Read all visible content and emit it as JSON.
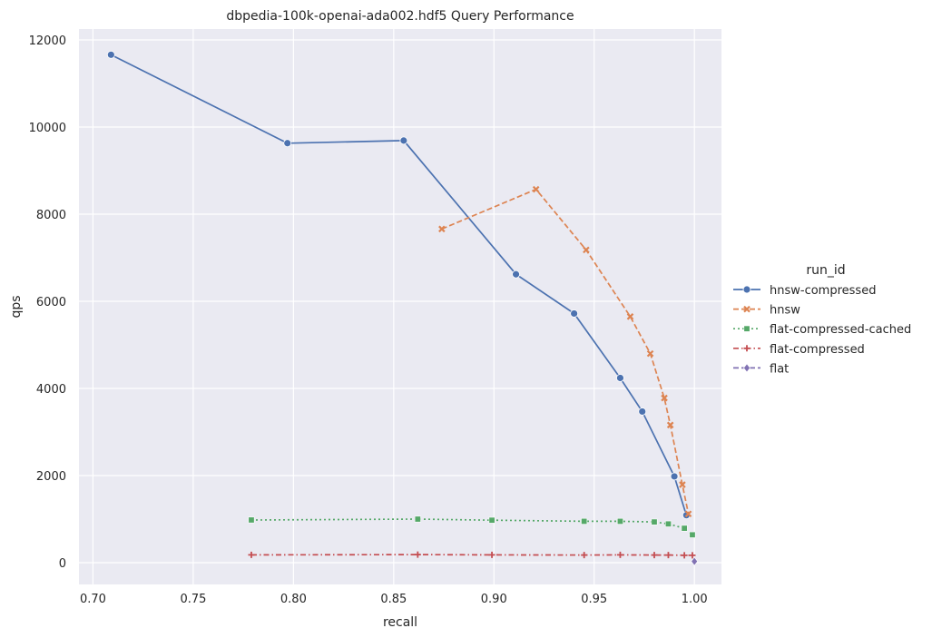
{
  "chart_data": {
    "type": "line",
    "title": "dbpedia-100k-openai-ada002.hdf5 Query Performance",
    "xlabel": "recall",
    "ylabel": "qps",
    "xlim": [
      0.693,
      1.0135
    ],
    "ylim": [
      -500,
      12250
    ],
    "xticks": [
      "0.70",
      "0.75",
      "0.80",
      "0.85",
      "0.90",
      "0.95",
      "1.00"
    ],
    "yticks": [
      "0",
      "2000",
      "4000",
      "6000",
      "8000",
      "10000",
      "12000"
    ],
    "grid": true,
    "legend": {
      "title": "run_id",
      "placement": "right"
    },
    "series": [
      {
        "name": "hnsw-compressed",
        "color": "#4c72b0",
        "dash": "solid",
        "marker": "circle",
        "points": [
          [
            0.709,
            11660
          ],
          [
            0.797,
            9630
          ],
          [
            0.855,
            9690
          ],
          [
            0.911,
            6620
          ],
          [
            0.94,
            5720
          ],
          [
            0.963,
            4240
          ],
          [
            0.974,
            3470
          ],
          [
            0.99,
            1980
          ],
          [
            0.996,
            1090
          ]
        ]
      },
      {
        "name": "hnsw",
        "color": "#dd8452",
        "dash": "dashed",
        "marker": "x",
        "points": [
          [
            0.874,
            7660
          ],
          [
            0.921,
            8570
          ],
          [
            0.946,
            7180
          ],
          [
            0.968,
            5650
          ],
          [
            0.978,
            4800
          ],
          [
            0.985,
            3780
          ],
          [
            0.988,
            3160
          ],
          [
            0.994,
            1790
          ],
          [
            0.997,
            1120
          ]
        ]
      },
      {
        "name": "flat-compressed-cached",
        "color": "#55a868",
        "dash": "dotted",
        "marker": "square",
        "points": [
          [
            0.779,
            980
          ],
          [
            0.862,
            1000
          ],
          [
            0.899,
            975
          ],
          [
            0.945,
            950
          ],
          [
            0.963,
            950
          ],
          [
            0.98,
            935
          ],
          [
            0.987,
            890
          ],
          [
            0.995,
            790
          ],
          [
            0.999,
            640
          ]
        ]
      },
      {
        "name": "flat-compressed",
        "color": "#c44e52",
        "dash": "dashdot",
        "marker": "plus",
        "points": [
          [
            0.779,
            180
          ],
          [
            0.862,
            185
          ],
          [
            0.899,
            180
          ],
          [
            0.945,
            175
          ],
          [
            0.963,
            180
          ],
          [
            0.98,
            175
          ],
          [
            0.987,
            175
          ],
          [
            0.995,
            170
          ],
          [
            0.999,
            170
          ]
        ]
      },
      {
        "name": "flat",
        "color": "#8172b3",
        "dash": "dashed",
        "marker": "diamond",
        "points": [
          [
            1.0,
            30
          ]
        ]
      }
    ]
  }
}
